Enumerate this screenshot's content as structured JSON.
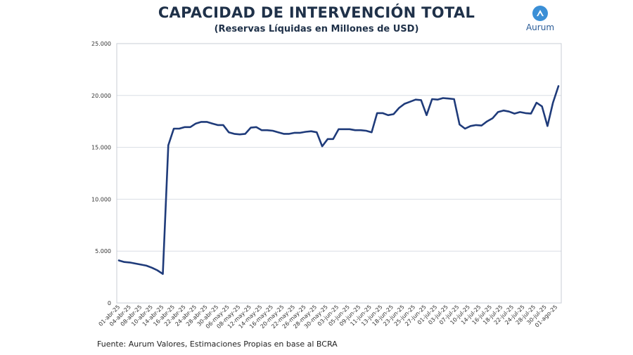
{
  "header": {
    "title": "CAPACIDAD DE INTERVENCIÓN TOTAL",
    "subtitle": "(Reservas Líquidas en Millones de USD)"
  },
  "logo": {
    "brand": "Aurum",
    "icon": "aurum-logo-icon"
  },
  "footer": {
    "source": "Fuente: Aurum Valores, Estimaciones Propias en base al BCRA"
  },
  "colors": {
    "line": "#1f3b7a",
    "text": "#1f3149",
    "grid": "#d9dde5",
    "logo": "#3b8fd6"
  },
  "chart_data": {
    "type": "line",
    "title": "CAPACIDAD DE INTERVENCIÓN TOTAL",
    "subtitle": "(Reservas Líquidas en Millones de USD)",
    "xlabel": "",
    "ylabel": "",
    "ylim": [
      0,
      25000
    ],
    "yticks": [
      0,
      5000,
      10000,
      15000,
      20000,
      25000
    ],
    "ytick_labels": [
      "0",
      "5.000",
      "10.000",
      "15.000",
      "20.000",
      "25.000"
    ],
    "grid": true,
    "x_tick_labels": [
      "01-abr-25",
      "04-abr-25",
      "08-abr-25",
      "10-abr-25",
      "14-abr-25",
      "16-abr-25",
      "22-abr-25",
      "24-abr-25",
      "28-abr-25",
      "30-abr-25",
      "06-may-25",
      "08-may-25",
      "12-may-25",
      "14-may-25",
      "16-may-25",
      "20-may-25",
      "22-may-25",
      "26-may-25",
      "28-may-25",
      "30-may-25",
      "03-jun-25",
      "05-jun-25",
      "09-jun-25",
      "11-jun-25",
      "13-jun-25",
      "18-jun-25",
      "23-jun-25",
      "25-jun-25",
      "27-jun-25",
      "01-jul-25",
      "03-jul-25",
      "07-jul-25",
      "10-jul-25",
      "14-jul-25",
      "16-jul-25",
      "18-jul-25",
      "22-jul-25",
      "24-jul-25",
      "28-jul-25",
      "30-jul-25",
      "01-ago-25"
    ],
    "series": [
      {
        "name": "Reservas Líquidas",
        "values": [
          4100,
          3950,
          3900,
          3800,
          3700,
          3600,
          3400,
          3150,
          2800,
          15200,
          16800,
          16800,
          16950,
          16950,
          17300,
          17450,
          17450,
          17300,
          17150,
          17150,
          16450,
          16300,
          16250,
          16300,
          16900,
          16950,
          16650,
          16650,
          16600,
          16450,
          16300,
          16300,
          16400,
          16400,
          16500,
          16550,
          16450,
          15100,
          15800,
          15800,
          16750,
          16750,
          16750,
          16650,
          16650,
          16600,
          16450,
          18300,
          18300,
          18100,
          18200,
          18800,
          19200,
          19400,
          19600,
          19550,
          18100,
          19650,
          19600,
          19750,
          19700,
          19650,
          17200,
          16800,
          17050,
          17150,
          17100,
          17500,
          17800,
          18400,
          18550,
          18450,
          18250,
          18400,
          18300,
          18250,
          19300,
          18950,
          17050,
          19300,
          20900
        ]
      }
    ]
  }
}
